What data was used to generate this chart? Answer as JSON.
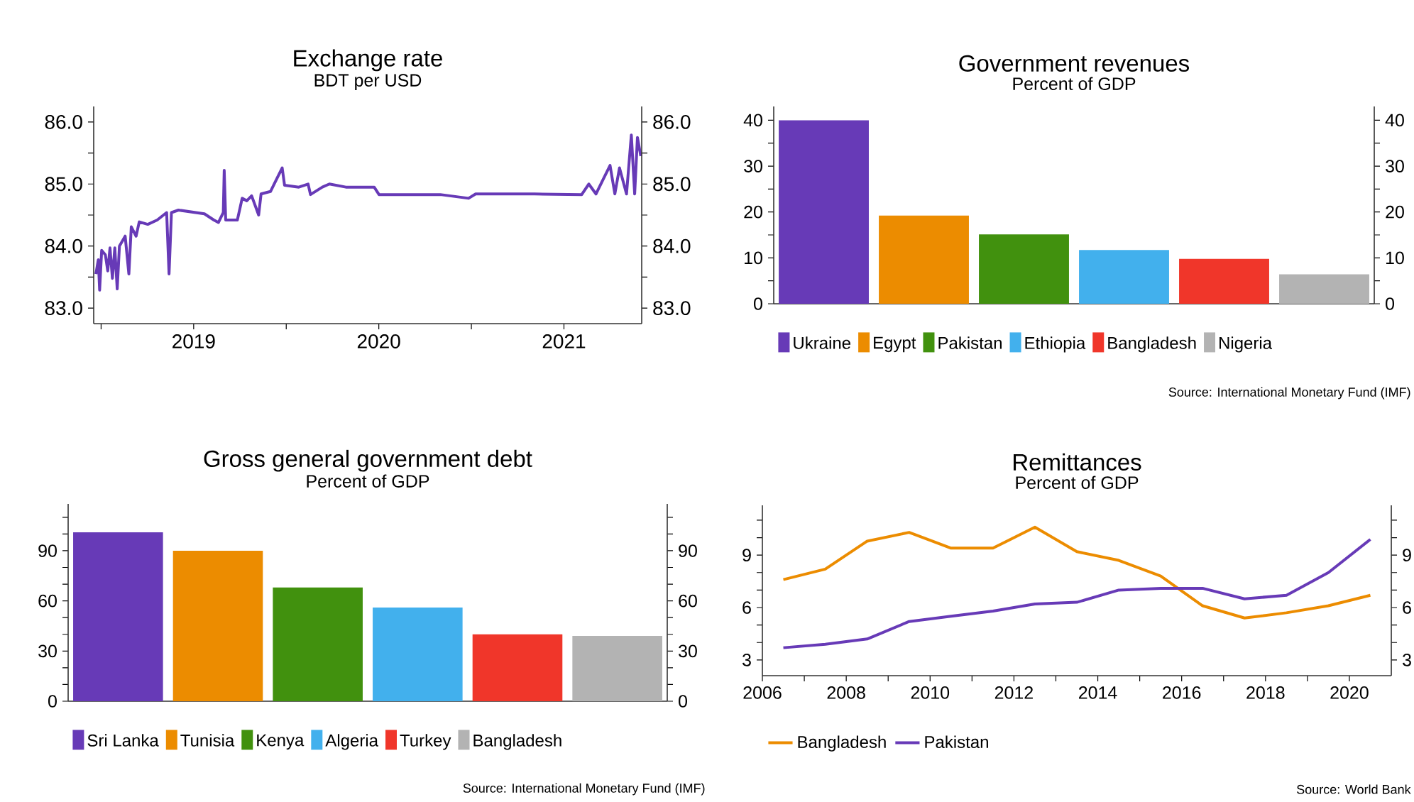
{
  "chart_data": [
    {
      "type": "line",
      "title": "Exchange rate",
      "subtitle": "BDT per USD",
      "color": "#673ab7",
      "x": [
        2018.972,
        2018.985,
        2018.992,
        2019.003,
        2019.023,
        2019.036,
        2019.048,
        2019.061,
        2019.074,
        2019.087,
        2019.099,
        2019.13,
        2019.15,
        2019.163,
        2019.189,
        2019.206,
        2019.252,
        2019.303,
        2019.354,
        2019.367,
        2019.38,
        2019.418,
        2019.558,
        2019.609,
        2019.634,
        2019.66,
        2019.665,
        2019.673,
        2019.736,
        2019.762,
        2019.787,
        2019.813,
        2019.851,
        2019.864,
        2019.915,
        2019.978,
        2019.991,
        2020.068,
        2020.118,
        2020.131,
        2020.195,
        2020.233,
        2020.322,
        2020.475,
        2020.501,
        2020.832,
        2020.985,
        2021.023,
        2021.341,
        2021.596,
        2021.634,
        2021.673,
        2021.749,
        2021.775,
        2021.8,
        2021.838,
        2021.864,
        2021.882,
        2021.897,
        2021.915
      ],
      "values": [
        83.55,
        83.78,
        83.29,
        83.93,
        83.86,
        83.6,
        83.97,
        83.48,
        83.97,
        83.31,
        84.0,
        84.16,
        83.55,
        84.31,
        84.16,
        84.39,
        84.35,
        84.42,
        84.54,
        83.55,
        84.54,
        84.58,
        84.52,
        84.42,
        84.38,
        84.54,
        85.22,
        84.42,
        84.42,
        84.77,
        84.73,
        84.81,
        84.5,
        84.84,
        84.88,
        85.26,
        84.98,
        84.95,
        85.0,
        84.83,
        84.95,
        85.0,
        84.95,
        84.95,
        84.83,
        84.83,
        84.77,
        84.84,
        84.84,
        84.83,
        85.0,
        84.84,
        85.3,
        84.84,
        85.26,
        84.84,
        85.79,
        84.84,
        85.75,
        85.45
      ],
      "xlim": [
        2018.96,
        2021.92
      ],
      "xticks": [
        {
          "value": 2019,
          "label": null
        },
        {
          "value": 2019.5,
          "label": "2019"
        },
        {
          "value": 2020,
          "label": null
        },
        {
          "value": 2020.5,
          "label": "2020"
        },
        {
          "value": 2021,
          "label": null
        },
        {
          "value": 2021.5,
          "label": "2021"
        }
      ],
      "ylim": [
        82.75,
        86.25
      ],
      "yticks": [
        {
          "value": 83,
          "label": "83.0"
        },
        {
          "value": 83.5,
          "label": null
        },
        {
          "value": 84,
          "label": "84.0"
        },
        {
          "value": 84.5,
          "label": null
        },
        {
          "value": 85,
          "label": "85.0"
        },
        {
          "value": 85.5,
          "label": null
        },
        {
          "value": 86,
          "label": "86.0"
        }
      ],
      "y2lim": [
        82.75,
        86.25
      ],
      "y2ticks": [
        {
          "value": 83,
          "label": "83.0"
        },
        {
          "value": 83.5,
          "label": null
        },
        {
          "value": 84,
          "label": "84.0"
        },
        {
          "value": 84.5,
          "label": null
        },
        {
          "value": 85,
          "label": "85.0"
        },
        {
          "value": 85.5,
          "label": null
        },
        {
          "value": 86,
          "label": "86.0"
        }
      ]
    },
    {
      "type": "bar",
      "title": "Government revenues",
      "subtitle": "Percent of GDP",
      "categories": [
        null,
        null,
        null,
        null,
        null,
        null
      ],
      "series": [
        {
          "name": "Ukraine",
          "color": "#673ab7",
          "values": [
            40,
            null,
            null,
            null,
            null,
            null
          ]
        },
        {
          "name": "Egypt",
          "color": "#ec8c00",
          "values": [
            null,
            19.2,
            null,
            null,
            null,
            null
          ]
        },
        {
          "name": "Pakistan",
          "color": "#41910e",
          "values": [
            null,
            null,
            15.1,
            null,
            null,
            null
          ]
        },
        {
          "name": "Ethiopia",
          "color": "#42b0ed",
          "values": [
            null,
            null,
            null,
            11.7,
            null,
            null
          ]
        },
        {
          "name": "Bangladesh",
          "color": "#f0362a",
          "values": [
            null,
            null,
            null,
            null,
            9.8,
            null
          ]
        },
        {
          "name": "Nigeria",
          "color": "#b3b3b3",
          "values": [
            null,
            null,
            null,
            null,
            null,
            6.4
          ]
        }
      ],
      "ylim": [
        0,
        43
      ],
      "yticks": [
        0,
        {
          "value": 5,
          "label": null
        },
        10,
        {
          "value": 15,
          "label": null
        },
        20,
        {
          "value": 25,
          "label": null
        },
        30,
        {
          "value": 35,
          "label": null
        },
        40
      ],
      "y2lim": [
        0,
        43
      ],
      "y2ticks": [
        0,
        {
          "value": 5,
          "label": null
        },
        10,
        {
          "value": 15,
          "label": null
        },
        20,
        {
          "value": 25,
          "label": null
        },
        30,
        {
          "value": 35,
          "label": null
        },
        40
      ],
      "legend": "bottom",
      "tick_labels": "y",
      "annotations": [
        "Source: International Monetary Fund (IMF)"
      ]
    },
    {
      "type": "bar",
      "title": "Gross general government debt",
      "subtitle": "Percent of GDP",
      "categories": [
        null,
        null,
        null,
        null,
        null,
        null
      ],
      "series": [
        {
          "name": "Sri Lanka",
          "color": "#673ab7",
          "values": [
            101,
            null,
            null,
            null,
            null,
            null
          ]
        },
        {
          "name": "Tunisia",
          "color": "#ec8c00",
          "values": [
            null,
            90,
            null,
            null,
            null,
            null
          ]
        },
        {
          "name": "Kenya",
          "color": "#41910e",
          "values": [
            null,
            null,
            68,
            null,
            null,
            null
          ]
        },
        {
          "name": "Algeria",
          "color": "#42b0ed",
          "values": [
            null,
            null,
            null,
            56,
            null,
            null
          ]
        },
        {
          "name": "Turkey",
          "color": "#f0362a",
          "values": [
            null,
            null,
            null,
            null,
            40,
            null
          ]
        },
        {
          "name": "Bangladesh",
          "color": "#b3b3b3",
          "values": [
            null,
            null,
            null,
            null,
            null,
            39
          ]
        }
      ],
      "ylim": [
        0,
        118
      ],
      "yticks": [
        0,
        {
          "value": 10,
          "label": null
        },
        {
          "value": 20,
          "label": null
        },
        30,
        {
          "value": 40,
          "label": null
        },
        {
          "value": 50,
          "label": null
        },
        60,
        {
          "value": 70,
          "label": null
        },
        {
          "value": 80,
          "label": null
        },
        90,
        {
          "value": 100,
          "label": null
        },
        {
          "value": 110,
          "label": null
        }
      ],
      "y2lim": [
        0,
        118
      ],
      "y2ticks": [
        0,
        {
          "value": 10,
          "label": null
        },
        {
          "value": 20,
          "label": null
        },
        30,
        {
          "value": 40,
          "label": null
        },
        {
          "value": 50,
          "label": null
        },
        60,
        {
          "value": 70,
          "label": null
        },
        {
          "value": 80,
          "label": null
        },
        90,
        {
          "value": 100,
          "label": null
        },
        {
          "value": 110,
          "label": null
        }
      ],
      "legend": "bottom",
      "tick_labels": "y",
      "annotations": [
        "Source: International Monetary Fund (IMF)"
      ]
    },
    {
      "type": "line",
      "title": "Remittances",
      "subtitle": "Percent of GDP",
      "x": [
        2006.5,
        2007.5,
        2008.5,
        2009.5,
        2010.5,
        2011.5,
        2012.5,
        2013.5,
        2014.5,
        2015.5,
        2016.5,
        2017.5,
        2018.5,
        2019.5,
        2020.5
      ],
      "series": [
        {
          "name": "Bangladesh",
          "color": "#ec8c00",
          "values": [
            7.6,
            8.2,
            9.8,
            10.3,
            9.4,
            9.4,
            10.6,
            9.2,
            8.7,
            7.8,
            6.1,
            5.4,
            5.7,
            6.1,
            6.7
          ]
        },
        {
          "name": "Pakistan",
          "color": "#673ab7",
          "values": [
            3.7,
            3.9,
            4.2,
            5.2,
            5.5,
            5.8,
            6.2,
            6.3,
            7.0,
            7.1,
            7.1,
            6.5,
            6.7,
            8.0,
            9.9
          ]
        }
      ],
      "xlim": [
        2006,
        2021
      ],
      "xticks": [
        2006,
        {
          "value": 2007,
          "label": null
        },
        2008,
        {
          "value": 2009,
          "label": null
        },
        2010,
        {
          "value": 2011,
          "label": null
        },
        2012,
        {
          "value": 2013,
          "label": null
        },
        2014,
        {
          "value": 2015,
          "label": null
        },
        2016,
        {
          "value": 2017,
          "label": null
        },
        2018,
        {
          "value": 2019,
          "label": null
        },
        2020
      ],
      "ylim": [
        2.1,
        11.85
      ],
      "yticks": [
        3,
        {
          "value": 4,
          "label": null
        },
        {
          "value": 5,
          "label": null
        },
        6,
        {
          "value": 7,
          "label": null
        },
        {
          "value": 8,
          "label": null
        },
        9,
        {
          "value": 10,
          "label": null
        },
        {
          "value": 11,
          "label": null
        }
      ],
      "y2lim": [
        2.1,
        11.85
      ],
      "y2ticks": [
        3,
        {
          "value": 4,
          "label": null
        },
        {
          "value": 5,
          "label": null
        },
        6,
        {
          "value": 7,
          "label": null
        },
        {
          "value": 8,
          "label": null
        },
        9,
        {
          "value": 10,
          "label": null
        },
        {
          "value": 11,
          "label": null
        }
      ],
      "legend": "bottom",
      "annotations": [
        "Source: World Bank"
      ]
    }
  ]
}
